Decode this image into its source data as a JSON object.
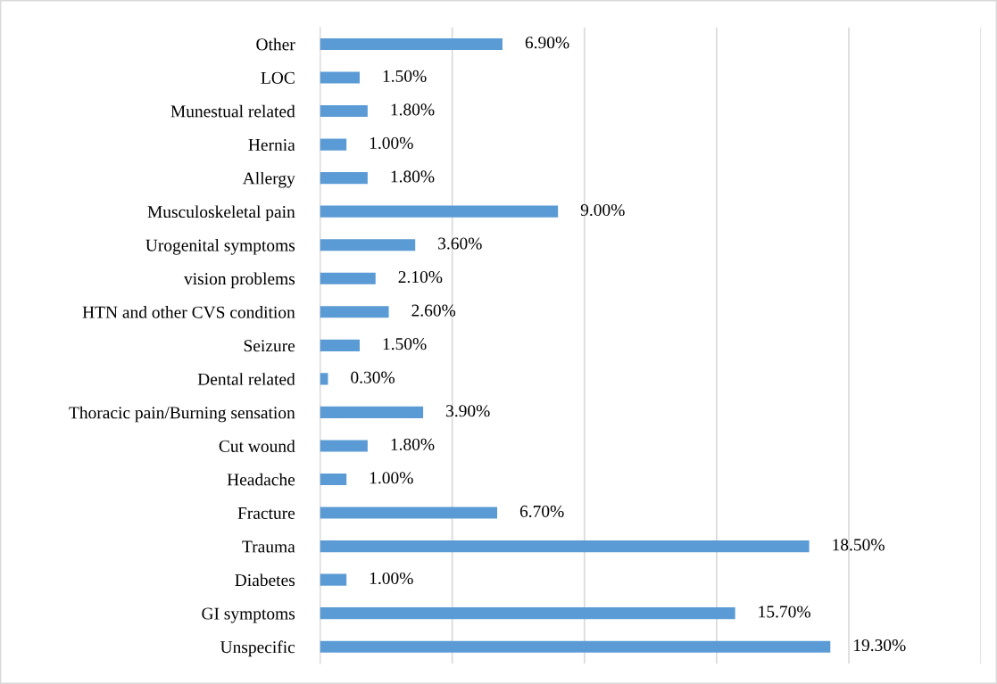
{
  "chart_data": {
    "type": "bar",
    "orientation": "horizontal",
    "categories": [
      "Other",
      "LOC",
      "Munestual related",
      "Hernia",
      "Allergy",
      "Musculoskeletal pain",
      "Urogenital symptoms",
      "vision problems",
      "HTN and other CVS condition",
      "Seizure",
      "Dental related",
      "Thoracic pain/Burning sensation",
      "Cut wound",
      "Headache",
      "Fracture",
      "Trauma",
      "Diabetes",
      "GI symptoms",
      "Unspecific"
    ],
    "values": [
      6.9,
      1.5,
      1.8,
      1.0,
      1.8,
      9.0,
      3.6,
      2.1,
      2.6,
      1.5,
      0.3,
      3.9,
      1.8,
      1.0,
      6.7,
      18.5,
      1.0,
      15.7,
      19.3
    ],
    "value_labels": [
      "6.90%",
      "1.50%",
      "1.80%",
      "1.00%",
      "1.80%",
      "9.00%",
      "3.60%",
      "2.10%",
      "2.60%",
      "1.50%",
      "0.30%",
      "3.90%",
      "1.80%",
      "1.00%",
      "6.70%",
      "18.50%",
      "1.00%",
      "15.70%",
      "19.30%"
    ],
    "color": "#5b9bd5",
    "xlim": [
      0,
      25
    ],
    "xticks": [
      {
        "value": 0,
        "label": null
      },
      {
        "value": 5,
        "label": null
      },
      {
        "value": 10,
        "label": null
      },
      {
        "value": 15,
        "label": null
      },
      {
        "value": 20,
        "label": null
      },
      {
        "value": 25,
        "label": null
      }
    ],
    "grid": "x",
    "tick_labels": "y",
    "legend": false
  }
}
